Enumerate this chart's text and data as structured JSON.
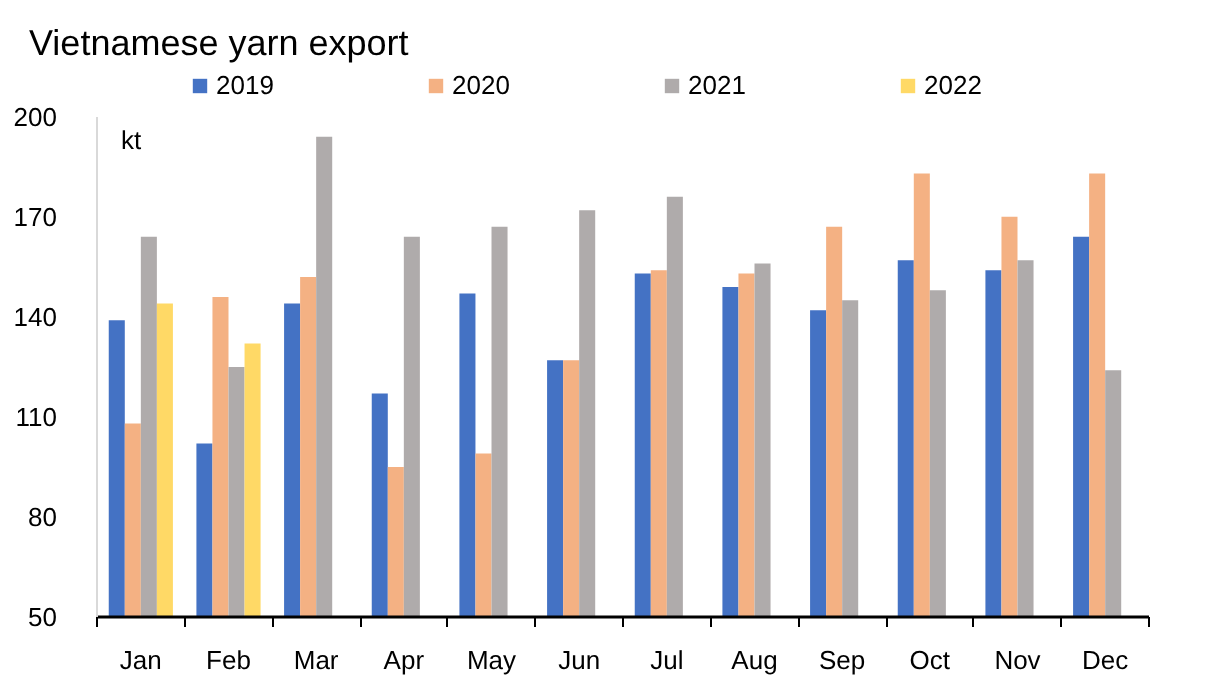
{
  "chart_data": {
    "type": "bar",
    "title": "Vietnamese yarn export",
    "ylabel": "kt",
    "categories": [
      "Jan",
      "Feb",
      "Mar",
      "Apr",
      "May",
      "Jun",
      "Jul",
      "Aug",
      "Sep",
      "Oct",
      "Nov",
      "Dec"
    ],
    "series": [
      {
        "name": "2019",
        "color": "#4472c4",
        "values": [
          139,
          102,
          144,
          117,
          147,
          127,
          153,
          149,
          142,
          157,
          154,
          164
        ]
      },
      {
        "name": "2020",
        "color": "#f4b183",
        "values": [
          108,
          146,
          152,
          95,
          99,
          127,
          154,
          153,
          167,
          183,
          170,
          183
        ]
      },
      {
        "name": "2021",
        "color": "#afabab",
        "values": [
          164,
          125,
          194,
          164,
          167,
          172,
          176,
          156,
          145,
          148,
          157,
          124
        ]
      },
      {
        "name": "2022",
        "color": "#ffd966",
        "values": [
          144,
          132,
          null,
          null,
          null,
          null,
          null,
          null,
          null,
          null,
          null,
          null
        ]
      }
    ],
    "ylim": [
      50,
      200
    ],
    "yticks": [
      50,
      80,
      110,
      140,
      170,
      200
    ],
    "legend": "top",
    "grid": false
  }
}
